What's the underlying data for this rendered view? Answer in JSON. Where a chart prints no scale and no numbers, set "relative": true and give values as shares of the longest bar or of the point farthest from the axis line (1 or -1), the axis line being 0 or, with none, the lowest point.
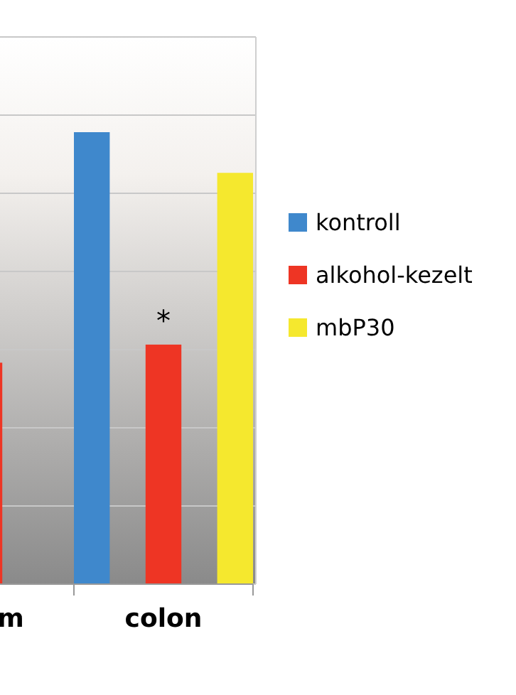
{
  "chart_data": {
    "type": "bar",
    "relative": true,
    "categories": [
      "m",
      "colon"
    ],
    "series": [
      {
        "name": "kontroll",
        "color": "#3f88cc",
        "values": [
          null,
          1
        ]
      },
      {
        "name": "alkohol-kezelt",
        "color": "#ee3524",
        "values": [
          0.49,
          0.53
        ]
      },
      {
        "name": "mbP30",
        "color": "#f5e82e",
        "values": [
          null,
          0.91
        ]
      }
    ],
    "annotations": [
      {
        "text": "*",
        "x": "colon",
        "y": 0.53
      }
    ],
    "grid": true,
    "legend": "right"
  }
}
